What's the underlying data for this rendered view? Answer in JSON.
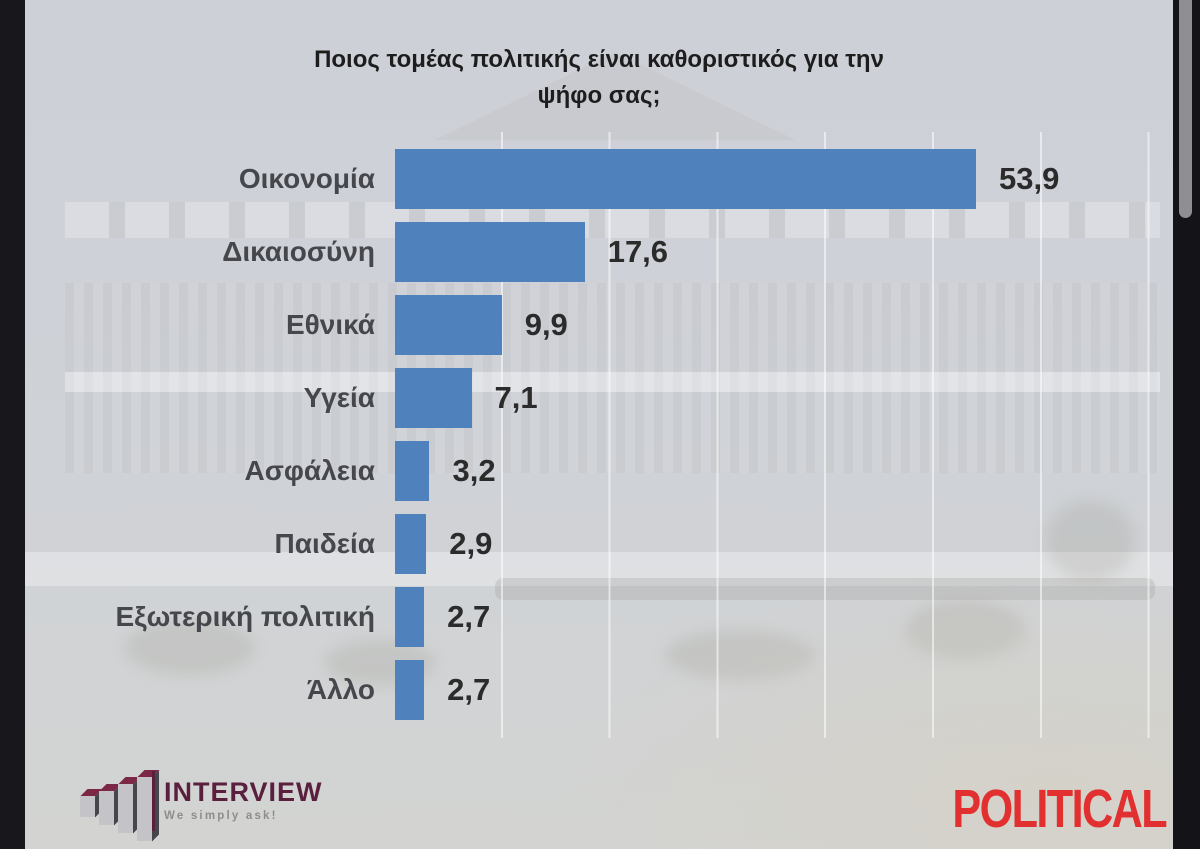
{
  "title": {
    "line1": "Ποιος τομέας πολιτικής είναι καθοριστικός για την",
    "line2": "ψήφο σας;"
  },
  "chart_data": {
    "type": "bar",
    "orientation": "horizontal",
    "title": "Ποιος τομέας πολιτικής είναι καθοριστικός για την ψήφο σας;",
    "categories": [
      "Οικονομία",
      "Δικαιοσύνη",
      "Εθνικά",
      "Υγεία",
      "Ασφάλεια",
      "Παιδεία",
      "Εξωτερική πολιτική",
      "Άλλο"
    ],
    "values": [
      53.9,
      17.6,
      9.9,
      7.1,
      3.2,
      2.9,
      2.7,
      2.7
    ],
    "value_labels": [
      "53,9",
      "17,6",
      "9,9",
      "7,1",
      "3,2",
      "2,9",
      "2,7",
      "2,7"
    ],
    "xlim": [
      0,
      70
    ],
    "grid": true,
    "legend": false,
    "bar_color": "#4f81bd"
  },
  "branding": {
    "interview": {
      "name": "INTERVIEW",
      "tagline": "We simply ask!"
    },
    "political": {
      "name": "POLITICAL"
    }
  },
  "colors": {
    "bar": "#4f81bd",
    "background": "#ced1d7",
    "interview_maroon": "#5a1f3d",
    "political_red": "#e22f2f"
  }
}
